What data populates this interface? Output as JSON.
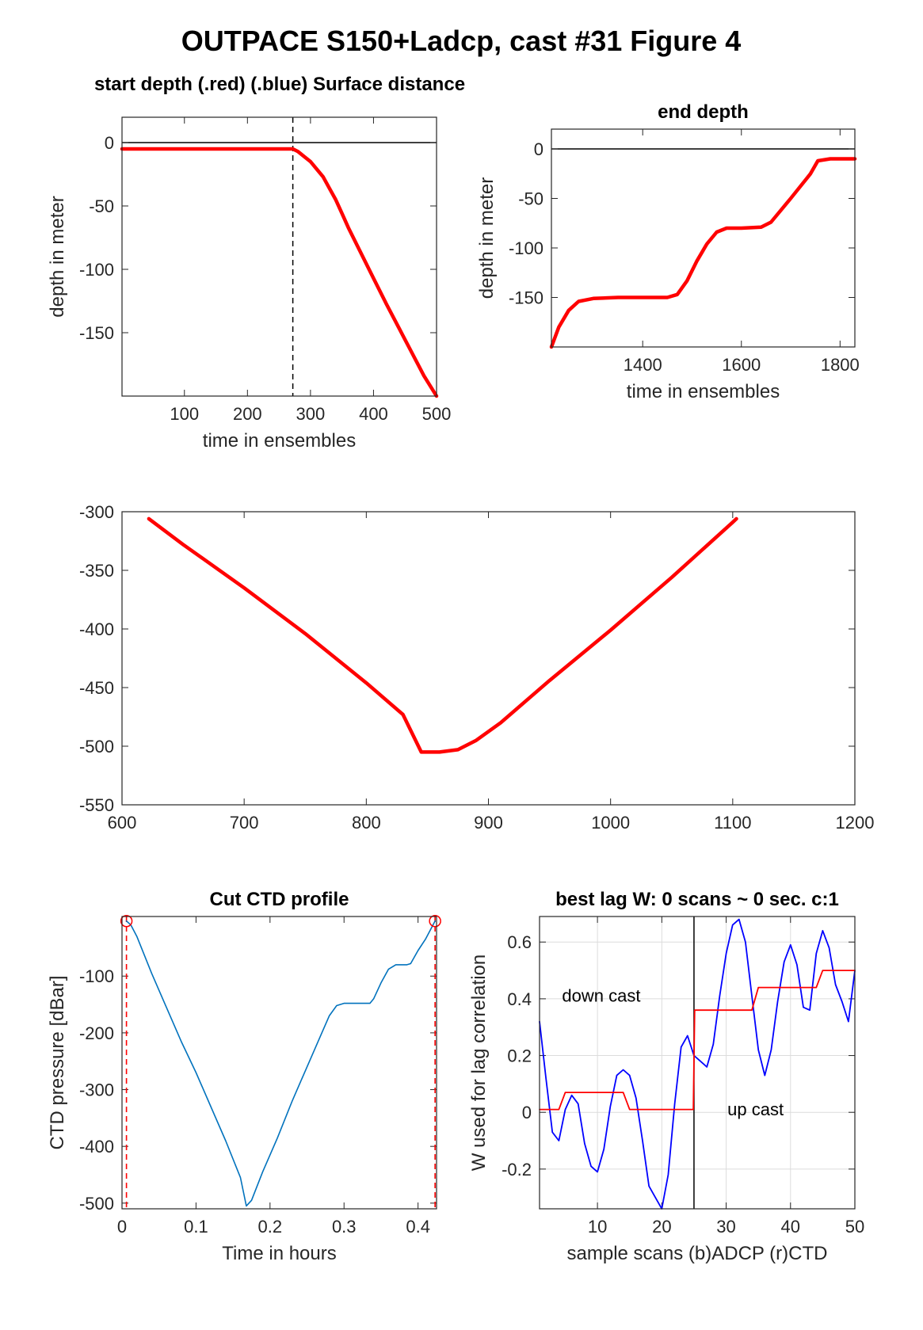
{
  "figure_title": "OUTPACE S150+Ladcp, cast #31   Figure 4",
  "chart_data": [
    {
      "id": "start",
      "type": "line",
      "title": "start depth (.red) (.blue) Surface distance",
      "xlabel": "time in ensembles",
      "ylabel": "depth in meter",
      "xlim": [
        1,
        500
      ],
      "ylim": [
        -200,
        20
      ],
      "xticks": [
        100,
        200,
        300,
        400,
        500
      ],
      "yticks": [
        0,
        -50,
        -100,
        -150
      ],
      "grid": false,
      "vline": 272,
      "series": [
        {
          "color": "#ff0000",
          "x": [
            1,
            50,
            100,
            150,
            200,
            250,
            272,
            280,
            290,
            300,
            310,
            320,
            330,
            340,
            350,
            360,
            380,
            400,
            420,
            440,
            460,
            480,
            500
          ],
          "y": [
            -5,
            -5,
            -5,
            -5,
            -5,
            -5,
            -5,
            -7,
            -11,
            -15,
            -21,
            -27,
            -36,
            -45,
            -56,
            -67,
            -87,
            -107,
            -127,
            -146,
            -165,
            -184,
            -200
          ]
        }
      ]
    },
    {
      "id": "end",
      "type": "line",
      "title": "end depth",
      "xlabel": "time in ensembles",
      "ylabel": "depth in meter",
      "xlim": [
        1215,
        1830
      ],
      "ylim": [
        -200,
        20
      ],
      "xticks": [
        1400,
        1600,
        1800
      ],
      "yticks": [
        0,
        -50,
        -100,
        -150
      ],
      "grid": false,
      "series": [
        {
          "color": "#ff0000",
          "x": [
            1215,
            1230,
            1250,
            1270,
            1300,
            1350,
            1400,
            1450,
            1470,
            1490,
            1510,
            1530,
            1550,
            1570,
            1600,
            1640,
            1660,
            1700,
            1740,
            1755,
            1780,
            1830
          ],
          "y": [
            -200,
            -180,
            -163,
            -154,
            -151,
            -150,
            -150,
            -150,
            -147,
            -133,
            -113,
            -96,
            -84,
            -80,
            -80,
            -79,
            -74,
            -50,
            -25,
            -12,
            -10,
            -10
          ]
        }
      ]
    },
    {
      "id": "middle",
      "type": "line",
      "title": "",
      "xlabel": "",
      "ylabel": "",
      "xlim": [
        600,
        1200
      ],
      "ylim": [
        -550,
        -300
      ],
      "xticks": [
        600,
        700,
        800,
        900,
        1000,
        1100,
        1200
      ],
      "yticks": [
        -300,
        -350,
        -400,
        -450,
        -500,
        -550
      ],
      "grid": false,
      "series": [
        {
          "color": "#ff0000",
          "x": [
            622,
            650,
            700,
            750,
            800,
            830,
            845,
            860,
            875,
            890,
            910,
            950,
            1000,
            1050,
            1100,
            1103
          ],
          "y": [
            -306,
            -328,
            -365,
            -404,
            -446,
            -473,
            -505,
            -505,
            -503,
            -495,
            -480,
            -444,
            -401,
            -356,
            -309,
            -306
          ]
        }
      ]
    },
    {
      "id": "ctd",
      "type": "line",
      "title": "Cut CTD profile",
      "xlabel": "Time in hours",
      "ylabel": "CTD pressure [dBar]",
      "xlim": [
        0,
        0.425
      ],
      "ylim": [
        -510,
        5
      ],
      "xticks": [
        0,
        0.1,
        0.2,
        0.3,
        0.4
      ],
      "yticks": [
        -100,
        -200,
        -300,
        -400,
        -500
      ],
      "grid": false,
      "vlines": [
        0.006,
        0.423
      ],
      "markers": [
        [
          0.006,
          -3
        ],
        [
          0.423,
          -3
        ]
      ],
      "series": [
        {
          "color": "#0072bd",
          "x": [
            0.006,
            0.012,
            0.02,
            0.04,
            0.06,
            0.08,
            0.1,
            0.12,
            0.14,
            0.16,
            0.168,
            0.175,
            0.19,
            0.21,
            0.23,
            0.25,
            0.27,
            0.28,
            0.29,
            0.3,
            0.32,
            0.335,
            0.34,
            0.35,
            0.36,
            0.37,
            0.38,
            0.385,
            0.39,
            0.4,
            0.41,
            0.423
          ],
          "y": [
            -3,
            -10,
            -30,
            -95,
            -155,
            -215,
            -270,
            -330,
            -390,
            -455,
            -505,
            -495,
            -445,
            -385,
            -320,
            -260,
            -200,
            -170,
            -152,
            -148,
            -148,
            -148,
            -140,
            -112,
            -88,
            -80,
            -80,
            -80,
            -78,
            -55,
            -35,
            -3
          ]
        }
      ]
    },
    {
      "id": "lag",
      "type": "line",
      "title": "best lag W: 0 scans ~ 0 sec.  c:1",
      "xlabel": "sample scans (b)ADCP (r)CTD",
      "ylabel": "W used for lag correlation",
      "xlim": [
        1,
        50
      ],
      "ylim": [
        -0.34,
        0.69
      ],
      "xticks": [
        10,
        20,
        30,
        40,
        50
      ],
      "yticks": [
        0.6,
        0.4,
        0.2,
        0,
        -0.2
      ],
      "grid": true,
      "vline": 25,
      "annotations": [
        "down cast",
        "up cast"
      ],
      "series": [
        {
          "color": "#0000ff",
          "x": [
            1,
            2,
            3,
            4,
            5,
            6,
            7,
            8,
            9,
            10,
            11,
            12,
            13,
            14,
            15,
            16,
            17,
            18,
            19,
            20,
            21,
            22,
            23,
            24,
            25,
            26,
            27,
            28,
            29,
            30,
            31,
            32,
            33,
            34,
            35,
            36,
            37,
            38,
            39,
            40,
            41,
            42,
            43,
            44,
            45,
            46,
            47,
            48,
            49,
            50
          ],
          "y": [
            0.32,
            0.12,
            -0.07,
            -0.1,
            0.01,
            0.06,
            0.03,
            -0.11,
            -0.19,
            -0.21,
            -0.13,
            0.02,
            0.13,
            0.15,
            0.13,
            0.05,
            -0.1,
            -0.26,
            -0.3,
            -0.34,
            -0.22,
            0.03,
            0.23,
            0.27,
            0.2,
            0.18,
            0.16,
            0.24,
            0.41,
            0.56,
            0.66,
            0.68,
            0.6,
            0.41,
            0.22,
            0.13,
            0.22,
            0.39,
            0.53,
            0.59,
            0.52,
            0.37,
            0.36,
            0.56,
            0.64,
            0.58,
            0.45,
            0.39,
            0.32,
            0.5
          ]
        },
        {
          "color": "#ff0000",
          "x": [
            1,
            4,
            5,
            14,
            15,
            24.9,
            25.1,
            34,
            35,
            44,
            45,
            50
          ],
          "y": [
            0.01,
            0.01,
            0.07,
            0.07,
            0.01,
            0.01,
            0.36,
            0.36,
            0.44,
            0.44,
            0.5,
            0.5
          ]
        }
      ]
    }
  ]
}
